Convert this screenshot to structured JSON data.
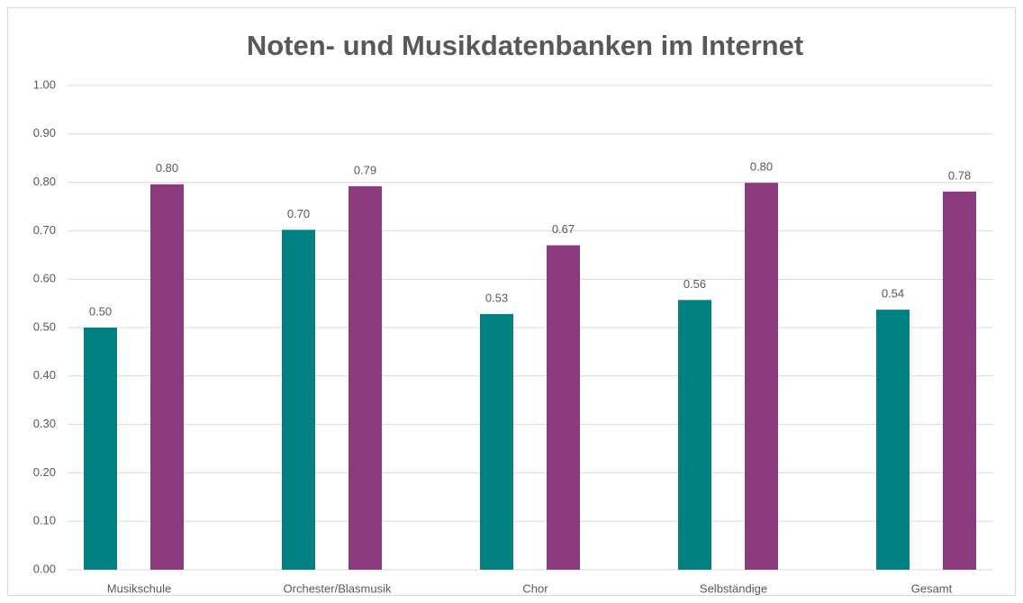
{
  "chart_data": {
    "type": "bar",
    "title": "Noten- und Musikdatenbanken im Internet",
    "categories": [
      "Musikschule",
      "Orchester/Blasmusik",
      "Chor",
      "Selbständige",
      "Gesamt"
    ],
    "series": [
      {
        "color": "#008080",
        "values": [
          0.5,
          0.702,
          0.528,
          0.557,
          0.537
        ],
        "value_labels": [
          "0.50",
          "0.70",
          "0.53",
          "0.56",
          "0.54"
        ]
      },
      {
        "color": "#8b3a7e",
        "values": [
          0.796,
          0.792,
          0.67,
          0.799,
          0.781
        ],
        "value_labels": [
          "0.80",
          "0.79",
          "0.67",
          "0.80",
          "0.78"
        ]
      }
    ],
    "ylim": [
      0,
      1
    ],
    "yticks": [
      {
        "value": 0,
        "label": "0.00"
      },
      {
        "value": 0.1,
        "label": "0.10"
      },
      {
        "value": 0.2,
        "label": "0.20"
      },
      {
        "value": 0.3,
        "label": "0.30"
      },
      {
        "value": 0.4,
        "label": "0.40"
      },
      {
        "value": 0.5,
        "label": "0.50"
      },
      {
        "value": 0.6,
        "label": "0.60"
      },
      {
        "value": 0.7,
        "label": "0.70"
      },
      {
        "value": 0.8,
        "label": "0.80"
      },
      {
        "value": 0.9,
        "label": "0.90"
      },
      {
        "value": 1,
        "label": "1.00"
      }
    ],
    "grid": true
  }
}
